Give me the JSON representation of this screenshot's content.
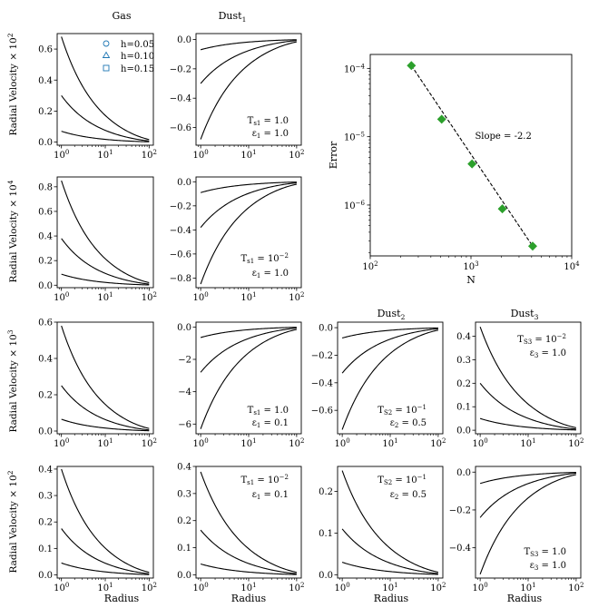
{
  "figure": {
    "column_titles": {
      "gas": "Gas",
      "dust1": "Dust",
      "dust1_sub": "1",
      "dust2": "Dust",
      "dust2_sub": "2",
      "dust3": "Dust",
      "dust3_sub": "3"
    },
    "xlabel": "Radius",
    "ylabels": [
      "Radial Velocity × 10^2",
      "Radial Velocity × 10^4",
      "Radial Velocity × 10^3",
      "Radial Velocity × 10^2"
    ],
    "legend": [
      {
        "label": "h=0.05",
        "marker": "circle"
      },
      {
        "label": "h=0.10",
        "marker": "triangle"
      },
      {
        "label": "h=0.15",
        "marker": "square"
      }
    ],
    "panel_annotations": {
      "r0c1": [
        "T_s1 = 1.0",
        "ε_1 = 1.0"
      ],
      "r1c1": [
        "T_s1 = 10^-2",
        "ε_1 = 1.0"
      ],
      "r2c1": [
        "T_s1 = 1.0",
        "ε_1 = 0.1"
      ],
      "r2c2": [
        "T_s2 = 10^-1",
        "ε_2 = 0.5"
      ],
      "r2c3": [
        "T_s3 = 10^-2",
        "ε_3 = 1.0"
      ],
      "r3c1": [
        "T_s1 = 10^-2",
        "ε_1 = 0.1"
      ],
      "r3c2": [
        "T_s2 = 10^-1",
        "ε_2 = 0.5"
      ],
      "r3c3": [
        "T_s3 = 1.0",
        "ε_3 = 1.0"
      ]
    },
    "colors": {
      "gas": "#1f77b4",
      "dust1": "#ff7f0e",
      "dust2": "#d62728",
      "dust3": "#2ca02c",
      "analytic": "#000000",
      "error": "#2ca02c"
    }
  },
  "chart_data": [
    {
      "id": "r0c0",
      "type": "line",
      "xscale": "log",
      "xlim": [
        0.8,
        125
      ],
      "ylim": [
        -0.02,
        0.7
      ],
      "yticks": [
        0.0,
        0.2,
        0.4,
        0.6
      ],
      "amplitudes": [
        0.07,
        0.3,
        0.68
      ],
      "x": [
        1,
        1.3,
        1.7,
        2.2,
        2.9,
        3.8,
        5,
        6.5,
        8.5,
        11,
        14.5,
        19,
        25,
        32,
        42,
        55,
        72,
        95
      ]
    },
    {
      "id": "r0c1",
      "type": "line",
      "xscale": "log",
      "xlim": [
        0.8,
        125
      ],
      "ylim": [
        -0.72,
        0.04
      ],
      "yticks": [
        -0.6,
        -0.4,
        -0.2,
        0.0
      ],
      "amplitudes": [
        -0.07,
        -0.3,
        -0.68
      ],
      "x": [
        1,
        1.3,
        1.7,
        2.2,
        2.9,
        3.8,
        5,
        6.5,
        8.5,
        11,
        14.5,
        19,
        25,
        32,
        42,
        55,
        72,
        95
      ]
    },
    {
      "id": "r1c0",
      "type": "line",
      "xscale": "log",
      "xlim": [
        0.8,
        125
      ],
      "ylim": [
        -0.02,
        0.88
      ],
      "yticks": [
        0.0,
        0.2,
        0.4,
        0.6,
        0.8
      ],
      "amplitudes": [
        0.09,
        0.38,
        0.85
      ],
      "x": [
        1,
        1.3,
        1.7,
        2.2,
        2.9,
        3.8,
        5,
        6.5,
        8.5,
        11,
        14.5,
        19,
        25,
        32,
        42,
        55,
        72,
        95
      ]
    },
    {
      "id": "r1c1",
      "type": "line",
      "xscale": "log",
      "xlim": [
        0.8,
        125
      ],
      "ylim": [
        -0.88,
        0.04
      ],
      "yticks": [
        -0.8,
        -0.6,
        -0.4,
        -0.2,
        0.0
      ],
      "amplitudes": [
        -0.09,
        -0.38,
        -0.85
      ],
      "x": [
        1,
        1.3,
        1.7,
        2.2,
        2.9,
        3.8,
        5,
        6.5,
        8.5,
        11,
        14.5,
        19,
        25,
        32,
        42,
        55,
        72,
        95
      ]
    },
    {
      "id": "error",
      "type": "scatter",
      "xscale": "log",
      "yscale": "log",
      "xlabel": "N",
      "ylabel": "Error",
      "xlim": [
        100,
        10000
      ],
      "ylim": [
        1.8e-07,
        0.00016
      ],
      "x": [
        256,
        512,
        1024,
        2048,
        4096
      ],
      "y": [
        0.00011,
        1.8e-05,
        4e-06,
        8.8e-07,
        2.5e-07
      ],
      "annotation": "Slope = -2.2"
    },
    {
      "id": "r2c0",
      "type": "line",
      "xscale": "log",
      "xlim": [
        0.8,
        125
      ],
      "ylim": [
        -0.015,
        0.6
      ],
      "yticks": [
        0.0,
        0.2,
        0.4,
        0.6
      ],
      "amplitudes": [
        0.065,
        0.25,
        0.58
      ],
      "x": [
        1,
        1.3,
        1.7,
        2.2,
        2.9,
        3.8,
        5,
        6.5,
        8.5,
        11,
        14.5,
        19,
        25,
        32,
        42,
        55,
        72,
        95
      ]
    },
    {
      "id": "r2c1",
      "type": "line",
      "xscale": "log",
      "xlim": [
        0.8,
        125
      ],
      "ylim": [
        -6.6,
        0.3
      ],
      "yticks": [
        -6,
        -4,
        -2,
        0
      ],
      "amplitudes": [
        -0.65,
        -2.8,
        -6.3
      ],
      "x": [
        1,
        1.3,
        1.7,
        2.2,
        2.9,
        3.8,
        5,
        6.5,
        8.5,
        11,
        14.5,
        19,
        25,
        32,
        42,
        55,
        72,
        95
      ]
    },
    {
      "id": "r2c2",
      "type": "line",
      "xscale": "log",
      "xlim": [
        0.8,
        125
      ],
      "ylim": [
        -0.77,
        0.04
      ],
      "yticks": [
        -0.6,
        -0.4,
        -0.2,
        0.0
      ],
      "amplitudes": [
        -0.075,
        -0.33,
        -0.74
      ],
      "x": [
        1,
        1.3,
        1.7,
        2.2,
        2.9,
        3.8,
        5,
        6.5,
        8.5,
        11,
        14.5,
        19,
        25,
        32,
        42,
        55,
        72,
        95
      ]
    },
    {
      "id": "r2c3",
      "type": "line",
      "xscale": "log",
      "xlim": [
        0.8,
        125
      ],
      "ylim": [
        -0.015,
        0.46
      ],
      "yticks": [
        0.0,
        0.1,
        0.2,
        0.3,
        0.4
      ],
      "amplitudes": [
        0.05,
        0.2,
        0.44
      ],
      "x": [
        1,
        1.3,
        1.7,
        2.2,
        2.9,
        3.8,
        5,
        6.5,
        8.5,
        11,
        14.5,
        19,
        25,
        32,
        42,
        55,
        72,
        95
      ]
    },
    {
      "id": "r3c0",
      "type": "line",
      "xscale": "log",
      "xlim": [
        0.8,
        125
      ],
      "ylim": [
        -0.012,
        0.41
      ],
      "yticks": [
        0.0,
        0.1,
        0.2,
        0.3,
        0.4
      ],
      "amplitudes": [
        0.045,
        0.175,
        0.4
      ],
      "x": [
        1,
        1.3,
        1.7,
        2.2,
        2.9,
        3.8,
        5,
        6.5,
        8.5,
        11,
        14.5,
        19,
        25,
        32,
        42,
        55,
        72,
        95
      ]
    },
    {
      "id": "r3c1",
      "type": "line",
      "xscale": "log",
      "xlim": [
        0.8,
        125
      ],
      "ylim": [
        -0.012,
        0.4
      ],
      "yticks": [
        0.0,
        0.1,
        0.2,
        0.3,
        0.4
      ],
      "amplitudes": [
        0.04,
        0.165,
        0.38
      ],
      "x": [
        1,
        1.3,
        1.7,
        2.2,
        2.9,
        3.8,
        5,
        6.5,
        8.5,
        11,
        14.5,
        19,
        25,
        32,
        42,
        55,
        72,
        95
      ]
    },
    {
      "id": "r3c2",
      "type": "line",
      "xscale": "log",
      "xlim": [
        0.8,
        125
      ],
      "ylim": [
        -0.008,
        0.26
      ],
      "yticks": [
        0.0,
        0.1,
        0.2
      ],
      "amplitudes": [
        0.03,
        0.11,
        0.25
      ],
      "x": [
        1,
        1.3,
        1.7,
        2.2,
        2.9,
        3.8,
        5,
        6.5,
        8.5,
        11,
        14.5,
        19,
        25,
        32,
        42,
        55,
        72,
        95
      ]
    },
    {
      "id": "r3c3",
      "type": "line",
      "xscale": "log",
      "xlim": [
        0.8,
        125
      ],
      "ylim": [
        -0.56,
        0.03
      ],
      "yticks": [
        -0.4,
        -0.2,
        0.0
      ],
      "amplitudes": [
        -0.06,
        -0.24,
        -0.54
      ],
      "x": [
        1,
        1.3,
        1.7,
        2.2,
        2.9,
        3.8,
        5,
        6.5,
        8.5,
        11,
        14.5,
        19,
        25,
        32,
        42,
        55,
        72,
        95
      ]
    }
  ]
}
